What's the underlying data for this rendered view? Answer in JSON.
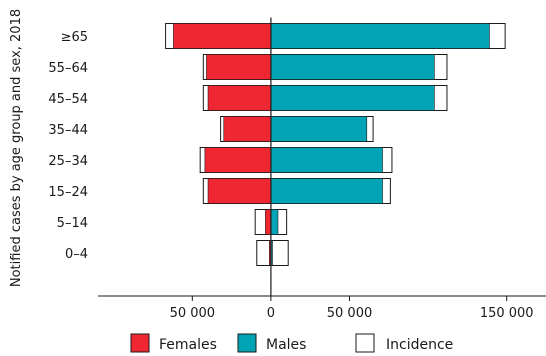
{
  "chart_data": {
    "type": "bar",
    "orientation": "horizontal-diverging",
    "ylabel": "Notified cases by age group and sex, 2018",
    "categories": [
      "≥65",
      "55–64",
      "45–54",
      "35–44",
      "25–34",
      "15–24",
      "5–14",
      "0–4"
    ],
    "series": [
      {
        "name": "Females",
        "color": "#ee2733",
        "values": [
          62000,
          41000,
          40000,
          30000,
          42000,
          40000,
          3500,
          1000
        ]
      },
      {
        "name": "Males",
        "color": "#00a4b5",
        "values": [
          139000,
          104000,
          104000,
          61000,
          71000,
          71000,
          4500,
          1000
        ]
      },
      {
        "name": "Incidence",
        "color": "#ffffff",
        "left_values": [
          67000,
          43000,
          43000,
          32000,
          45000,
          43000,
          10000,
          9000
        ],
        "right_values": [
          149000,
          112000,
          112000,
          65000,
          77000,
          76000,
          10000,
          11000
        ]
      }
    ],
    "xticks": [
      {
        "value": -50000,
        "label": "50 000"
      },
      {
        "value": 0,
        "label": "0"
      },
      {
        "value": 50000,
        "label": "50 000"
      },
      {
        "value": 150000,
        "label": "150 000"
      }
    ],
    "xlim": [
      -110000,
      175000
    ],
    "grid": false,
    "legend_position": "bottom"
  }
}
